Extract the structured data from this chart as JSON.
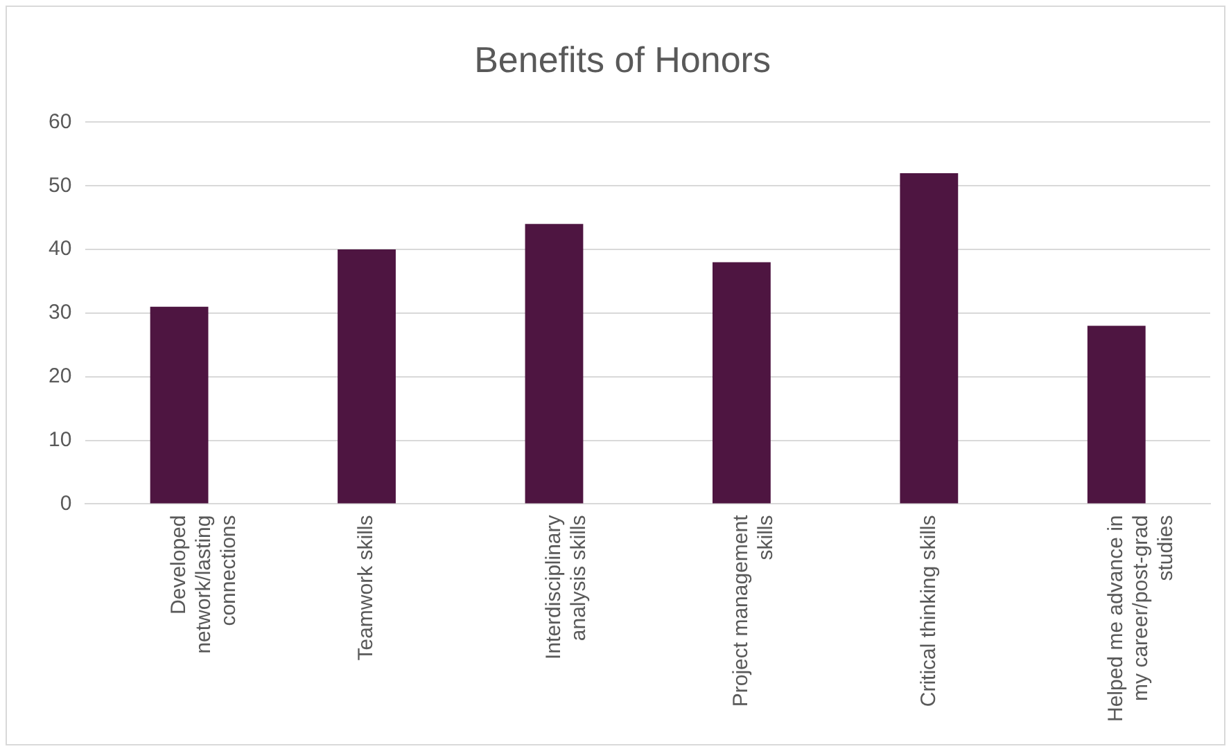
{
  "chart_data": {
    "type": "bar",
    "title": "Benefits of Honors",
    "categories": [
      "Developed network/lasting connections",
      "Teamwork skills",
      "Interdisciplinary analysis skills",
      "Project management skills",
      "Critical thinking skills",
      "Helped me advance in my career/post-grad studies"
    ],
    "values": [
      31,
      40,
      44,
      38,
      52,
      28
    ],
    "color": "#4e1541",
    "ylim": [
      0,
      60
    ],
    "yticks": [
      0,
      10,
      20,
      30,
      40,
      50,
      60
    ],
    "grid": "y"
  }
}
